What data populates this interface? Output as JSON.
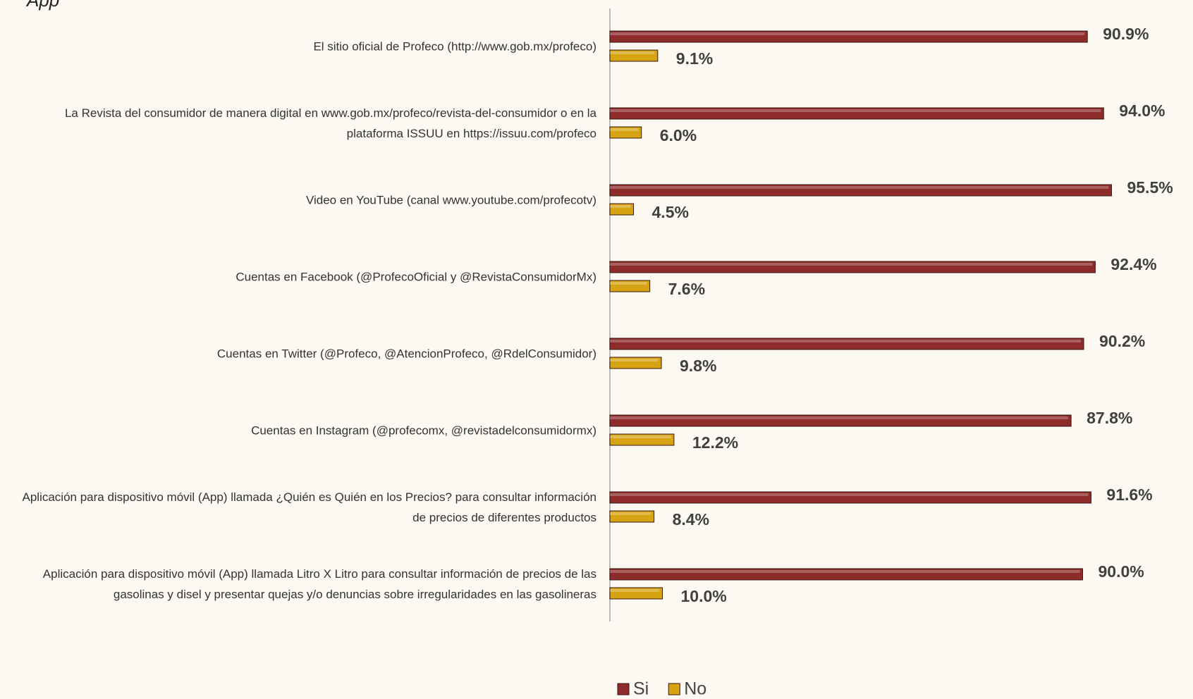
{
  "chart_data": {
    "type": "bar",
    "orientation": "horizontal",
    "title": "App",
    "categories": [
      "El sitio oficial de Profeco (http://www.gob.mx/profeco)",
      "La Revista del consumidor de manera digital en www.gob.mx/profeco/revista-del-consumidor o en la plataforma ISSUU en https://issuu.com/profeco",
      "Video en YouTube (canal www.youtube.com/profecotv)",
      "Cuentas en Facebook (@ProfecoOficial y @RevistaConsumidorMx)",
      "Cuentas en Twitter (@Profeco, @AtencionProfeco, @RdelConsumidor)",
      "Cuentas en Instagram (@profecomx, @revistadelconsumidormx)",
      "Aplicación para dispositivo móvil (App) llamada ¿Quién es Quién en los Precios? para consultar información de precios de diferentes productos",
      "Aplicación para dispositivo móvil (App) llamada Litro X Litro para consultar información de precios de las gasolinas y disel y presentar quejas y/o denuncias sobre irregularidades en las gasolineras"
    ],
    "series": [
      {
        "name": "Si",
        "color": "#8e2b2b",
        "values": [
          90.9,
          94.0,
          95.5,
          92.4,
          90.2,
          87.8,
          91.6,
          90.0
        ],
        "value_labels": [
          "90.9%",
          "94.0%",
          "95.5%",
          "92.4%",
          "90.2%",
          "87.8%",
          "91.6%",
          "90.0%"
        ]
      },
      {
        "name": "No",
        "color": "#d6a312",
        "values": [
          9.1,
          6.0,
          4.5,
          7.6,
          9.8,
          12.2,
          8.4,
          10.0
        ],
        "value_labels": [
          "9.1%",
          "6.0%",
          "4.5%",
          "7.6%",
          "9.8%",
          "12.2%",
          "8.4%",
          "10.0%"
        ]
      }
    ],
    "xlim": [
      0,
      100
    ],
    "legend": "bottom"
  }
}
